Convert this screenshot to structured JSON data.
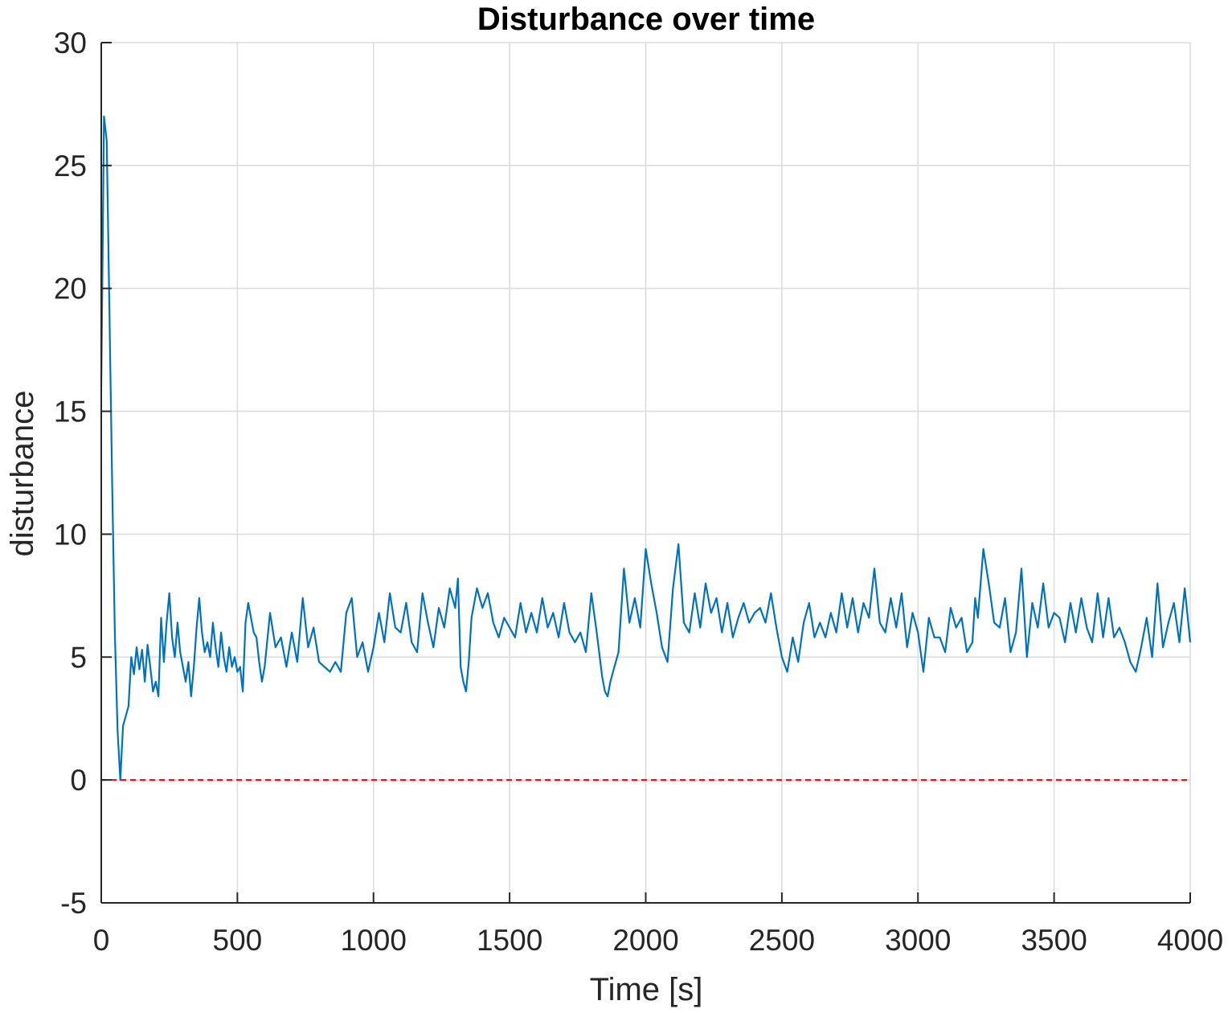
{
  "chart_data": {
    "type": "line",
    "title": "Disturbance over time",
    "xlabel": "Time [s]",
    "ylabel": "disturbance",
    "xlim": [
      0,
      4000
    ],
    "ylim": [
      -5,
      30
    ],
    "xticks": [
      "0",
      "500",
      "1000",
      "1500",
      "2000",
      "2500",
      "3000",
      "3500",
      "4000"
    ],
    "yticks": [
      "-5",
      "0",
      "5",
      "10",
      "15",
      "20",
      "25",
      "30"
    ],
    "grid": true,
    "legend": "none",
    "colors": {
      "series": "#0072BD",
      "reference": "#FF0000",
      "grid": "#DCDCDC",
      "axis": "#262626"
    },
    "series": [
      {
        "x": [
          0,
          10,
          20,
          30,
          40,
          50,
          60,
          70,
          80,
          90,
          100,
          110,
          120,
          130,
          140,
          150,
          160,
          170,
          180,
          190,
          200,
          210,
          220,
          230,
          240,
          250,
          260,
          270,
          280,
          290,
          300,
          310,
          320,
          330,
          340,
          350,
          360,
          370,
          380,
          390,
          400,
          410,
          420,
          430,
          440,
          450,
          460,
          470,
          480,
          490,
          500,
          510,
          520,
          530,
          540,
          550,
          560,
          570,
          580,
          590,
          600,
          620,
          640,
          660,
          680,
          700,
          720,
          740,
          760,
          780,
          800,
          820,
          840,
          860,
          880,
          900,
          920,
          940,
          960,
          980,
          1000,
          1020,
          1040,
          1060,
          1080,
          1100,
          1120,
          1140,
          1160,
          1180,
          1200,
          1220,
          1240,
          1260,
          1280,
          1300,
          1310,
          1320,
          1330,
          1340,
          1350,
          1360,
          1380,
          1400,
          1420,
          1440,
          1460,
          1480,
          1500,
          1520,
          1540,
          1560,
          1580,
          1600,
          1620,
          1640,
          1660,
          1680,
          1700,
          1720,
          1740,
          1760,
          1780,
          1800,
          1820,
          1840,
          1850,
          1860,
          1870,
          1880,
          1900,
          1920,
          1940,
          1960,
          1980,
          2000,
          2020,
          2040,
          2060,
          2080,
          2100,
          2120,
          2140,
          2160,
          2180,
          2200,
          2220,
          2240,
          2260,
          2280,
          2300,
          2320,
          2340,
          2360,
          2380,
          2400,
          2420,
          2440,
          2460,
          2480,
          2500,
          2520,
          2540,
          2560,
          2580,
          2600,
          2620,
          2640,
          2660,
          2680,
          2700,
          2720,
          2740,
          2760,
          2780,
          2800,
          2820,
          2840,
          2860,
          2880,
          2900,
          2920,
          2940,
          2960,
          2980,
          3000,
          3020,
          3040,
          3060,
          3080,
          3100,
          3120,
          3140,
          3160,
          3180,
          3200,
          3210,
          3220,
          3240,
          3260,
          3280,
          3300,
          3320,
          3340,
          3360,
          3380,
          3400,
          3420,
          3440,
          3460,
          3480,
          3500,
          3520,
          3540,
          3560,
          3580,
          3600,
          3620,
          3640,
          3660,
          3680,
          3700,
          3720,
          3740,
          3760,
          3780,
          3800,
          3820,
          3840,
          3860,
          3880,
          3900,
          3920,
          3940,
          3960,
          3980,
          4000
        ],
        "y": [
          16.0,
          27.0,
          26.0,
          19.0,
          12.0,
          6.0,
          2.0,
          0.0,
          2.2,
          2.6,
          3.0,
          5.0,
          4.3,
          5.4,
          4.5,
          5.3,
          4.0,
          5.5,
          4.6,
          3.6,
          4.0,
          3.4,
          6.6,
          4.8,
          6.4,
          7.6,
          5.8,
          5.0,
          6.4,
          5.2,
          4.6,
          4.0,
          4.8,
          3.4,
          4.6,
          6.2,
          7.4,
          6.0,
          5.2,
          5.6,
          5.0,
          6.4,
          5.4,
          4.6,
          6.0,
          5.0,
          4.4,
          5.4,
          4.6,
          5.0,
          4.4,
          4.6,
          3.6,
          6.4,
          7.2,
          6.6,
          6.0,
          5.8,
          4.8,
          4.0,
          4.6,
          6.8,
          5.4,
          5.8,
          4.6,
          6.0,
          4.8,
          7.4,
          5.4,
          6.2,
          4.8,
          4.6,
          4.4,
          4.8,
          4.4,
          6.8,
          7.4,
          5.0,
          5.6,
          4.4,
          5.4,
          6.8,
          5.6,
          7.6,
          6.2,
          6.0,
          7.2,
          5.6,
          5.2,
          7.6,
          6.4,
          5.4,
          7.0,
          6.2,
          7.8,
          7.0,
          8.2,
          4.6,
          4.0,
          3.6,
          4.8,
          6.6,
          7.8,
          7.0,
          7.6,
          6.4,
          5.8,
          6.6,
          6.2,
          5.8,
          7.2,
          6.0,
          6.8,
          6.0,
          7.4,
          6.2,
          6.8,
          5.8,
          7.2,
          6.0,
          5.6,
          6.0,
          5.2,
          7.6,
          6.0,
          4.2,
          3.6,
          3.4,
          4.0,
          4.4,
          5.2,
          8.6,
          6.4,
          7.4,
          6.2,
          9.4,
          8.0,
          6.8,
          5.4,
          4.8,
          7.8,
          9.6,
          6.4,
          6.0,
          7.6,
          6.2,
          8.0,
          6.8,
          7.4,
          6.0,
          7.2,
          5.8,
          6.6,
          7.2,
          6.4,
          6.8,
          7.0,
          6.4,
          7.6,
          6.2,
          5.0,
          4.4,
          5.8,
          4.8,
          6.4,
          7.2,
          5.8,
          6.4,
          5.8,
          6.8,
          6.0,
          7.6,
          6.2,
          7.4,
          6.0,
          7.2,
          6.6,
          8.6,
          6.4,
          6.0,
          7.4,
          6.2,
          7.6,
          5.4,
          6.8,
          6.0,
          4.4,
          6.6,
          5.8,
          5.8,
          5.2,
          7.0,
          6.2,
          6.6,
          5.2,
          5.6,
          7.4,
          6.6,
          9.4,
          8.0,
          6.4,
          6.2,
          7.4,
          5.2,
          6.0,
          8.6,
          5.0,
          7.2,
          6.2,
          8.0,
          6.2,
          6.8,
          6.6,
          5.6,
          7.2,
          6.0,
          7.4,
          6.2,
          5.6,
          7.6,
          5.8,
          7.4,
          5.8,
          6.2,
          5.6,
          4.8,
          4.4,
          5.4,
          6.6,
          5.0,
          8.0,
          5.4,
          6.4,
          7.2,
          5.6,
          7.8,
          5.6
        ]
      },
      {
        "x": [
          0,
          4000
        ],
        "y": [
          0,
          0
        ]
      }
    ]
  }
}
